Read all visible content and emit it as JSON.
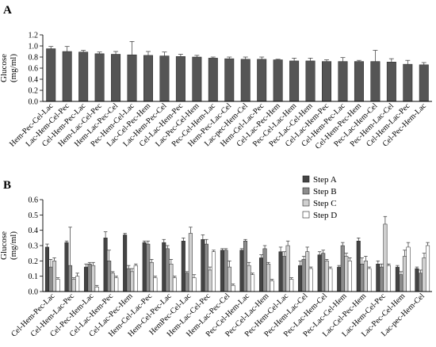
{
  "panels": [
    {
      "panel_label": "A",
      "chart_data": {
        "type": "bar",
        "ylabel": "Glucose\n(mg/ml)",
        "ylim": [
          0,
          1.2
        ],
        "yticks": [
          0.0,
          0.2,
          0.4,
          0.6,
          0.8,
          1.0,
          1.2
        ],
        "grid": false,
        "categories": [
          "Hem-Pec-Cel-Lac",
          "Lac-Hem-Cel-Pec",
          "Cel-Hem-Pec-Lac",
          "Hem-Lac-Cel-Pec",
          "Hem-Lac-Pec-Cel",
          "Pec-Hem-Cel-Lac",
          "Lac-Cel-Pec-Hem",
          "Lac-Hem-Pec-Cel",
          "Cel-Lac-Hem-Pec",
          "Lac-Pec-Cel-Hem",
          "Pec-Cel-Hem-Lac",
          "Hem-Pec-Lac-Cel",
          "Lac-pec-Hem-Cel",
          "Hem-Cel-Lac-Pec",
          "Cel-Lac-Pec-Hem",
          "Pec-Cel-Lac-Hem",
          "Pec-Lac-Cel-Hem",
          "Cel-Lac-Hem-Pec",
          "Cel-Hem-Pec-Lac",
          "Cel-Hem-Pec-Hem",
          "Pec-Lac-Hem-Cel",
          "Pec-Hem-Lac-Cel",
          "Cel-Hem-Lac-Pec",
          "Cel-Pec-Hem-Lac"
        ],
        "series": [
          {
            "values": [
              0.95,
              0.9,
              0.89,
              0.86,
              0.85,
              0.84,
              0.83,
              0.82,
              0.81,
              0.8,
              0.78,
              0.77,
              0.76,
              0.76,
              0.75,
              0.73,
              0.73,
              0.72,
              0.72,
              0.72,
              0.72,
              0.71,
              0.67,
              0.66
            ],
            "errors": [
              0.04,
              0.09,
              0.03,
              0.03,
              0.05,
              0.24,
              0.07,
              0.07,
              0.04,
              0.03,
              0.02,
              0.03,
              0.04,
              0.04,
              0.01,
              0.05,
              0.05,
              0.03,
              0.07,
              0.02,
              0.2,
              0.06,
              0.07,
              0.04
            ],
            "color": "#555555"
          }
        ]
      }
    },
    {
      "panel_label": "B",
      "chart_data": {
        "type": "bar",
        "ylabel": "Glucose\n(mg/ml)",
        "ylim": [
          0,
          0.6
        ],
        "yticks": [
          0.0,
          0.1,
          0.2,
          0.3,
          0.4,
          0.5,
          0.6
        ],
        "grid": false,
        "legend_position": "top-right",
        "categories": [
          "Cel-Hem-Pec-Lac",
          "Cel-Hem-Lac-Pec",
          "Cel-Pec-Hem-Lac",
          "Cel-Lac-Hem-Pec",
          "Cel-Lac-Pec-Hem",
          "Hem-Cel-Lac-Pec",
          "Hem-Cel-Pec-Lac",
          "HemPec-Cel-Lac",
          "Hem-Lac-Cel-Pec",
          "Hem-Lac-Pec-Cel",
          "Pec-Cel-Hem-Lac",
          "Pec-Cel-Lac-Hem",
          "Pec-Hem-Cel-Lac",
          "Pec-Hem-Lac-Cel",
          "Pec-Lac-Hem-Cel",
          "Pec-Lac-Cel-Hem",
          "Lac-Cel-Pec-Hem",
          "Lac-Hem-Cel-Pec",
          "Lac-Pec-Cel-Hem",
          "Lac-pec-Hem-Cel"
        ],
        "series": [
          {
            "name": "Step A",
            "color": "#444444",
            "values": [
              0.29,
              0.32,
              0.16,
              0.35,
              0.37,
              0.32,
              0.32,
              0.33,
              0.34,
              0.27,
              0.27,
              0.22,
              0.26,
              0.17,
              0.24,
              0.16,
              0.33,
              0.18,
              0.16,
              0.15
            ],
            "errors": [
              0.02,
              0.01,
              0.02,
              0.04,
              0.01,
              0.01,
              0.02,
              0.02,
              0.03,
              0.01,
              0.01,
              0.02,
              0.03,
              0.03,
              0.02,
              0.01,
              0.02,
              0.02,
              0.01,
              0.01
            ]
          },
          {
            "name": "Step B",
            "color": "#8c8c8c",
            "values": [
              0.16,
              0.17,
              0.18,
              0.2,
              0.15,
              0.31,
              0.28,
              0.12,
              0.31,
              0.27,
              0.33,
              0.28,
              0.23,
              0.21,
              0.25,
              0.3,
              0.18,
              0.16,
              0.11,
              0.12
            ],
            "errors": [
              0.05,
              0.25,
              0.01,
              0.07,
              0.02,
              0.02,
              0.02,
              0.01,
              0.03,
              0.01,
              0.01,
              0.02,
              0.03,
              0.02,
              0.02,
              0.02,
              0.04,
              0.02,
              0.02,
              0.02
            ]
          },
          {
            "name": "Step C",
            "color": "#d0d0d0",
            "values": [
              0.2,
              0.08,
              0.17,
              0.12,
              0.13,
              0.19,
              0.18,
              0.38,
              0.14,
              0.16,
              0.17,
              0.18,
              0.3,
              0.26,
              0.2,
              0.23,
              0.2,
              0.44,
              0.23,
              0.22
            ],
            "errors": [
              0.02,
              0.01,
              0.02,
              0.01,
              0.02,
              0.02,
              0.03,
              0.04,
              0.02,
              0.04,
              0.02,
              0.01,
              0.03,
              0.03,
              0.01,
              0.02,
              0.03,
              0.05,
              0.04,
              0.03
            ]
          },
          {
            "name": "Step D",
            "color": "#ffffff",
            "values": [
              0.08,
              0.1,
              0.03,
              0.09,
              0.17,
              0.09,
              0.09,
              0.09,
              0.26,
              0.04,
              0.11,
              0.07,
              0.08,
              0.15,
              0.15,
              0.2,
              0.15,
              0.17,
              0.29,
              0.3
            ],
            "errors": [
              0.01,
              0.02,
              0.01,
              0.01,
              0.01,
              0.01,
              0.01,
              0.02,
              0.01,
              0.01,
              0.01,
              0.01,
              0.01,
              0.01,
              0.01,
              0.02,
              0.01,
              0.01,
              0.03,
              0.02
            ]
          }
        ]
      }
    }
  ]
}
